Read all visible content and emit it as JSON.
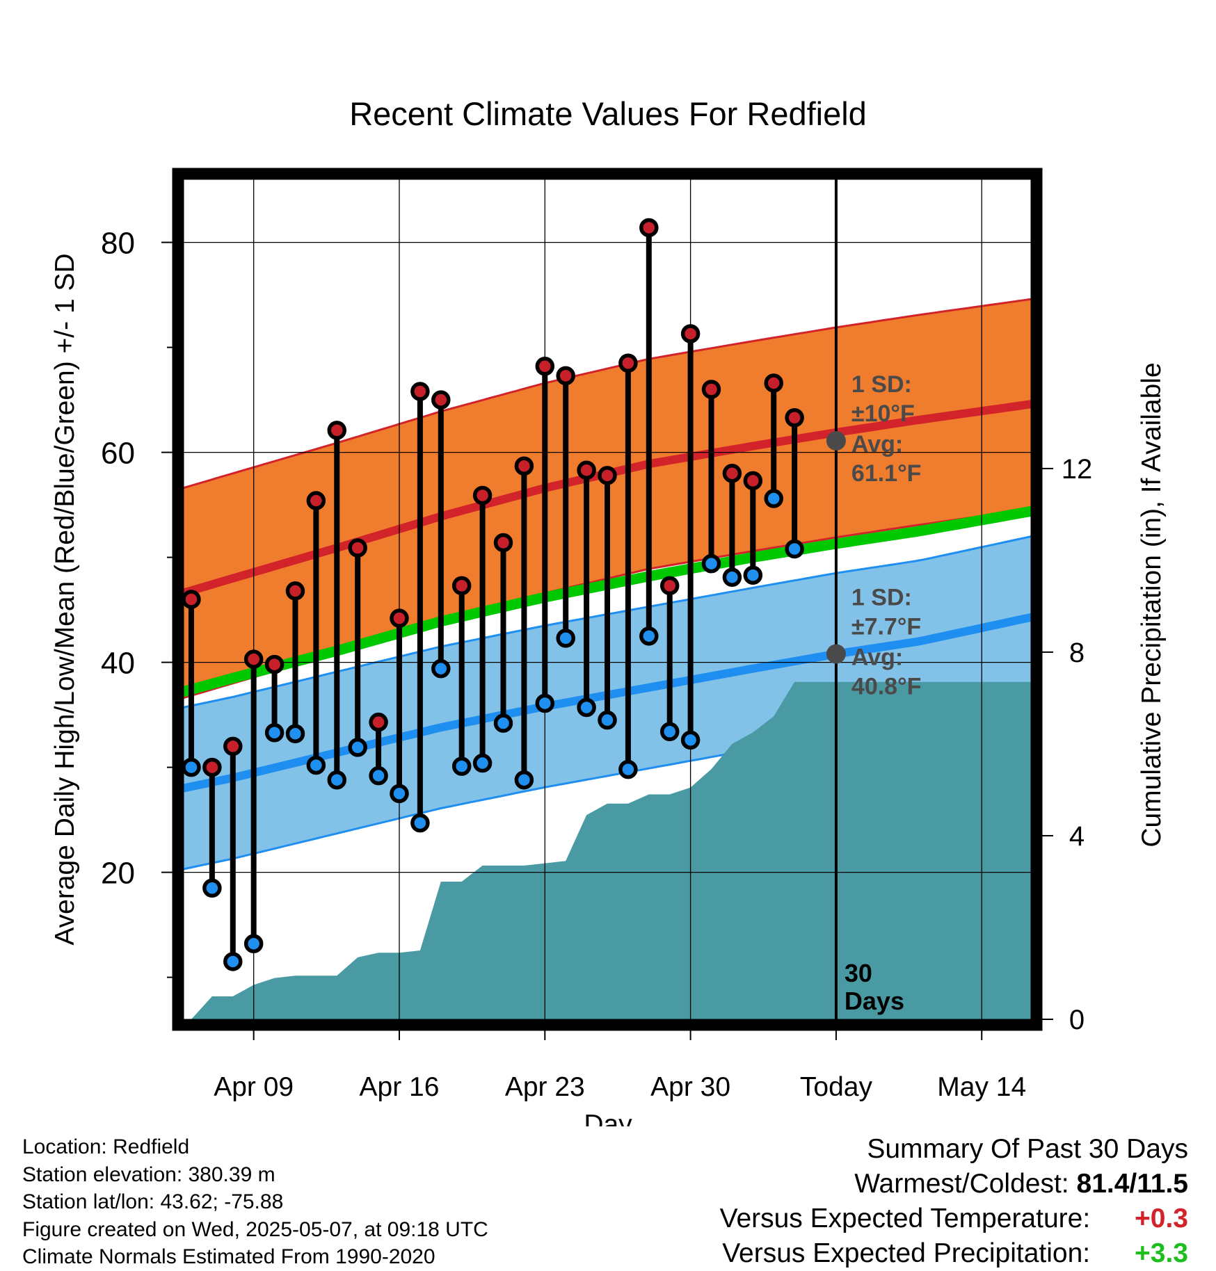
{
  "chart_data": {
    "type": "line",
    "title": "Recent Climate Values For Redfield",
    "xlabel": "Day",
    "ylabel": "Average Daily High/Low/Mean (Red/Blue/Green) +/- 1 SD",
    "y2label": "Cumulative Precipitation (in), If Available",
    "ylim": [
      6,
      86
    ],
    "y2lim": [
      0,
      18.3
    ],
    "xlim": [
      -2.4,
      38.4
    ],
    "x_tick_labels": [
      {
        "x": 1,
        "label": "Apr 09"
      },
      {
        "x": 8,
        "label": "Apr 16"
      },
      {
        "x": 15,
        "label": "Apr 23"
      },
      {
        "x": 22,
        "label": "Apr 30"
      },
      {
        "x": 29,
        "label": "Today"
      },
      {
        "x": 36,
        "label": "May 14"
      }
    ],
    "y_ticks": [
      20,
      40,
      60,
      80
    ],
    "y_minor_ticks": [
      10,
      30,
      50,
      70
    ],
    "y2_ticks": [
      0,
      4,
      8,
      12
    ],
    "grid": true,
    "today_x": 29,
    "window_label": [
      "30",
      "Days"
    ],
    "daily_x": [
      -2,
      -1,
      0,
      1,
      2,
      3,
      4,
      5,
      6,
      7,
      8,
      9,
      10,
      11,
      12,
      13,
      14,
      15,
      16,
      17,
      18,
      19,
      20,
      21,
      22,
      23,
      24,
      25,
      26,
      27,
      28
    ],
    "daily_high": [
      46.0,
      30.0,
      32.0,
      40.3,
      39.8,
      46.8,
      55.4,
      62.1,
      50.9,
      34.3,
      44.2,
      65.8,
      65.0,
      47.3,
      55.9,
      51.4,
      58.7,
      68.2,
      67.3,
      58.3,
      57.8,
      68.5,
      81.4,
      47.3,
      71.3,
      66.0,
      58.0,
      57.3,
      66.6,
      63.3,
      null
    ],
    "daily_low": [
      30.0,
      18.5,
      11.5,
      13.2,
      33.3,
      33.2,
      30.2,
      28.8,
      31.9,
      29.2,
      27.5,
      24.7,
      39.4,
      30.1,
      30.4,
      34.2,
      28.8,
      36.1,
      42.3,
      35.7,
      34.5,
      29.8,
      42.5,
      33.4,
      32.6,
      49.4,
      48.1,
      48.3,
      55.6,
      50.8,
      null
    ],
    "normals": {
      "x": [
        -2.4,
        0,
        5,
        10,
        15,
        20,
        25,
        29,
        33,
        38.4
      ],
      "high_mean": [
        46.6,
        48.0,
        50.9,
        53.9,
        56.6,
        58.9,
        60.6,
        61.9,
        63.1,
        64.6
      ],
      "high_sd": 10.0,
      "low_mean": [
        28.0,
        29.0,
        31.4,
        33.8,
        35.8,
        37.6,
        39.4,
        40.8,
        42.0,
        44.3
      ],
      "low_sd": 7.7,
      "mean": [
        37.2,
        38.5,
        41.1,
        43.9,
        46.2,
        48.2,
        50.0,
        51.3,
        52.5,
        54.4
      ]
    },
    "annotations": {
      "high": {
        "sd": [
          "1 SD:",
          "±10°F"
        ],
        "avg": [
          "Avg:",
          "61.1°F"
        ],
        "avg_value": 61.1
      },
      "low": {
        "sd": [
          "1 SD:",
          "±7.7°F"
        ],
        "avg": [
          "Avg:",
          "40.8°F"
        ],
        "avg_value": 40.8
      }
    },
    "precip": {
      "x": [
        -2,
        -1,
        0,
        1,
        2,
        3,
        4,
        5,
        6,
        7,
        8,
        9,
        10,
        11,
        12,
        13,
        14,
        15,
        16,
        17,
        18,
        19,
        20,
        21,
        22,
        23,
        24,
        25,
        26,
        27,
        28,
        29,
        38.4
      ],
      "y": [
        0.0,
        0.5,
        0.5,
        0.75,
        0.9,
        0.95,
        0.95,
        0.95,
        1.35,
        1.45,
        1.45,
        1.5,
        3.0,
        3.0,
        3.35,
        3.35,
        3.35,
        3.4,
        3.45,
        4.45,
        4.7,
        4.7,
        4.9,
        4.9,
        5.05,
        5.45,
        6.0,
        6.25,
        6.6,
        7.35,
        7.35,
        7.35,
        7.35
      ]
    },
    "colors": {
      "high_band": "#f07c2e",
      "high_line": "#d2232a",
      "low_band": "#83c2e8",
      "low_line": "#1e8ff0",
      "mean_line": "#00c800",
      "precip": "#4a9aa4",
      "high_dot": "#c8202a",
      "low_dot": "#2090f0",
      "annotation": "#4a4a4a"
    }
  },
  "footer": {
    "location": "Location: Redfield",
    "elevation": "Station elevation: 380.39 m",
    "latlon": "Station lat/lon: 43.62; -75.88",
    "created": "Figure created on Wed, 2025-05-07, at 09:18 UTC",
    "normals": "Climate Normals Estimated From 1990-2020"
  },
  "summary": {
    "heading": "Summary Of Past 30 Days",
    "warmest_coldest_label": "Warmest/Coldest:",
    "warmest_coldest_value": "81.4/11.5",
    "temp_label": "Versus Expected Temperature:",
    "temp_value": "+0.3",
    "temp_color": "#d2232a",
    "precip_label": "Versus Expected Precipitation:",
    "precip_value": "+3.3",
    "precip_color": "#1fbe1f"
  }
}
